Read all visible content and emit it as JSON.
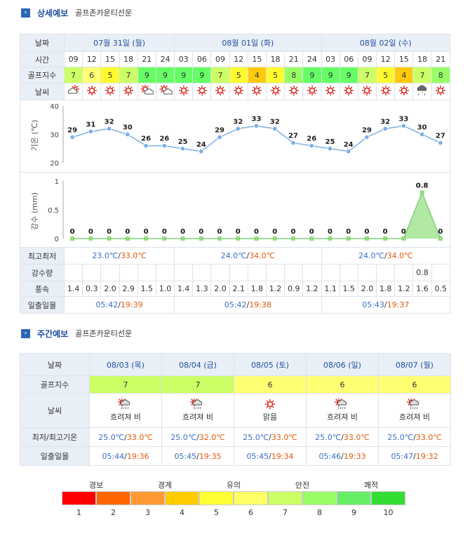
{
  "detail": {
    "title": "상세예보",
    "course": "골프존카운티선운",
    "labels": {
      "date": "날짜",
      "time": "시간",
      "golf": "골프지수",
      "weather": "날씨",
      "temp_axis": "기온 (℃)",
      "rain_axis": "강수 (mm)",
      "minmax": "최고최저",
      "precip": "강수량",
      "wind": "풍속",
      "sun": "일출일몰"
    },
    "days": [
      {
        "date": "07월 31일 (월)",
        "min": "23.0℃",
        "max": "33.0℃",
        "sunrise": "05:42",
        "sunset": "19:39"
      },
      {
        "date": "08월 01일 (화)",
        "min": "24.0℃",
        "max": "34.0℃",
        "sunrise": "05:42",
        "sunset": "19:38"
      },
      {
        "date": "08월 02일 (수)",
        "min": "24.0℃",
        "max": "34.0℃",
        "sunrise": "05:43",
        "sunset": "19:37"
      }
    ],
    "times": [
      "09",
      "12",
      "15",
      "18",
      "21",
      "24",
      "03",
      "06",
      "09",
      "12",
      "15",
      "18",
      "21",
      "24",
      "03",
      "06",
      "09",
      "12",
      "15",
      "18",
      "21"
    ],
    "golf_index": [
      7,
      6,
      5,
      7,
      9,
      9,
      9,
      9,
      7,
      5,
      4,
      5,
      8,
      9,
      9,
      9,
      7,
      5,
      4,
      7,
      8
    ],
    "weather_icons": [
      "cloud-icon",
      "sun-icon",
      "sun-icon",
      "sun-icon",
      "partly-cloudy-icon",
      "partly-cloudy-icon",
      "sun-icon",
      "sun-icon",
      "sun-icon",
      "sun-icon",
      "sun-icon",
      "sun-icon",
      "sun-icon",
      "sun-icon",
      "sun-icon",
      "sun-icon",
      "sun-icon",
      "sun-icon",
      "sun-icon",
      "rain-cloud-icon",
      "sun-icon"
    ],
    "precip_values": [
      "",
      "",
      "",
      "",
      "",
      "",
      "",
      "",
      "",
      "",
      "",
      "",
      "",
      "",
      "",
      "",
      "",
      "",
      "",
      "0.8",
      ""
    ],
    "wind": [
      "1.4",
      "0.3",
      "2.0",
      "2.9",
      "1.5",
      "1.0",
      "1.4",
      "1.3",
      "2.0",
      "2.1",
      "1.8",
      "1.2",
      "0.9",
      "1.2",
      "1.1",
      "1.5",
      "2.0",
      "1.8",
      "1.2",
      "1.6",
      "0.5"
    ]
  },
  "chart_data": [
    {
      "type": "line",
      "ylabel": "기온 (℃)",
      "ylim": [
        20,
        40
      ],
      "yticks": [
        "40",
        "30",
        "20"
      ],
      "x": [
        "09",
        "12",
        "15",
        "18",
        "21",
        "24",
        "03",
        "06",
        "09",
        "12",
        "15",
        "18",
        "21",
        "24",
        "03",
        "06",
        "09",
        "12",
        "15",
        "18",
        "21"
      ],
      "values": [
        29,
        31,
        32,
        30,
        26,
        26,
        25,
        24,
        29,
        32,
        33,
        32,
        27,
        26,
        25,
        24,
        29,
        32,
        33,
        30,
        27
      ]
    },
    {
      "type": "area",
      "ylabel": "강수 (mm)",
      "ylim": [
        0,
        1
      ],
      "yticks": [
        "1",
        "0.5",
        "0"
      ],
      "x": [
        "09",
        "12",
        "15",
        "18",
        "21",
        "24",
        "03",
        "06",
        "09",
        "12",
        "15",
        "18",
        "21",
        "24",
        "03",
        "06",
        "09",
        "12",
        "15",
        "18",
        "21"
      ],
      "values": [
        0,
        0,
        0,
        0,
        0,
        0,
        0,
        0,
        0,
        0,
        0,
        0,
        0,
        0,
        0,
        0,
        0,
        0,
        0,
        0.8,
        0
      ]
    }
  ],
  "weekly": {
    "title": "주간예보",
    "course": "골프존카운티선운",
    "labels": {
      "date": "날짜",
      "golf": "골프지수",
      "weather": "날씨",
      "temp": "최저/최고기온",
      "sun": "일출일몰"
    },
    "days": [
      {
        "date": "08/03 (목)",
        "golf": "7",
        "icon": "cloud-rain-icon",
        "weather": "흐려져 비",
        "min": "25.0℃",
        "max": "33.0℃",
        "sunrise": "05:44",
        "sunset": "19:36"
      },
      {
        "date": "08/04 (금)",
        "golf": "7",
        "icon": "cloud-rain-icon",
        "weather": "흐려져 비",
        "min": "25.0℃",
        "max": "32.0℃",
        "sunrise": "05:45",
        "sunset": "19:35"
      },
      {
        "date": "08/05 (토)",
        "golf": "6",
        "icon": "sun-icon",
        "weather": "맑음",
        "min": "25.0℃",
        "max": "33.0℃",
        "sunrise": "05:45",
        "sunset": "19:34"
      },
      {
        "date": "08/06 (일)",
        "golf": "6",
        "icon": "cloud-rain-icon",
        "weather": "흐려져 비",
        "min": "25.0℃",
        "max": "33.0℃",
        "sunrise": "05:46",
        "sunset": "19:33"
      },
      {
        "date": "08/07 (월)",
        "golf": "6",
        "icon": "cloud-rain-icon",
        "weather": "흐려져 비",
        "min": "25.0℃",
        "max": "33.0℃",
        "sunrise": "05:47",
        "sunset": "19:32"
      }
    ]
  },
  "legend": {
    "categories": [
      "경보",
      "경계",
      "유의",
      "안전",
      "쾌적"
    ],
    "numbers": [
      "1",
      "2",
      "3",
      "4",
      "5",
      "6",
      "7",
      "8",
      "9",
      "10"
    ],
    "colors": [
      "#ff0000",
      "#ff6600",
      "#ff9933",
      "#ffcc00",
      "#ffff33",
      "#ffff66",
      "#ccff66",
      "#99ff66",
      "#66ee66",
      "#33dd33"
    ]
  }
}
